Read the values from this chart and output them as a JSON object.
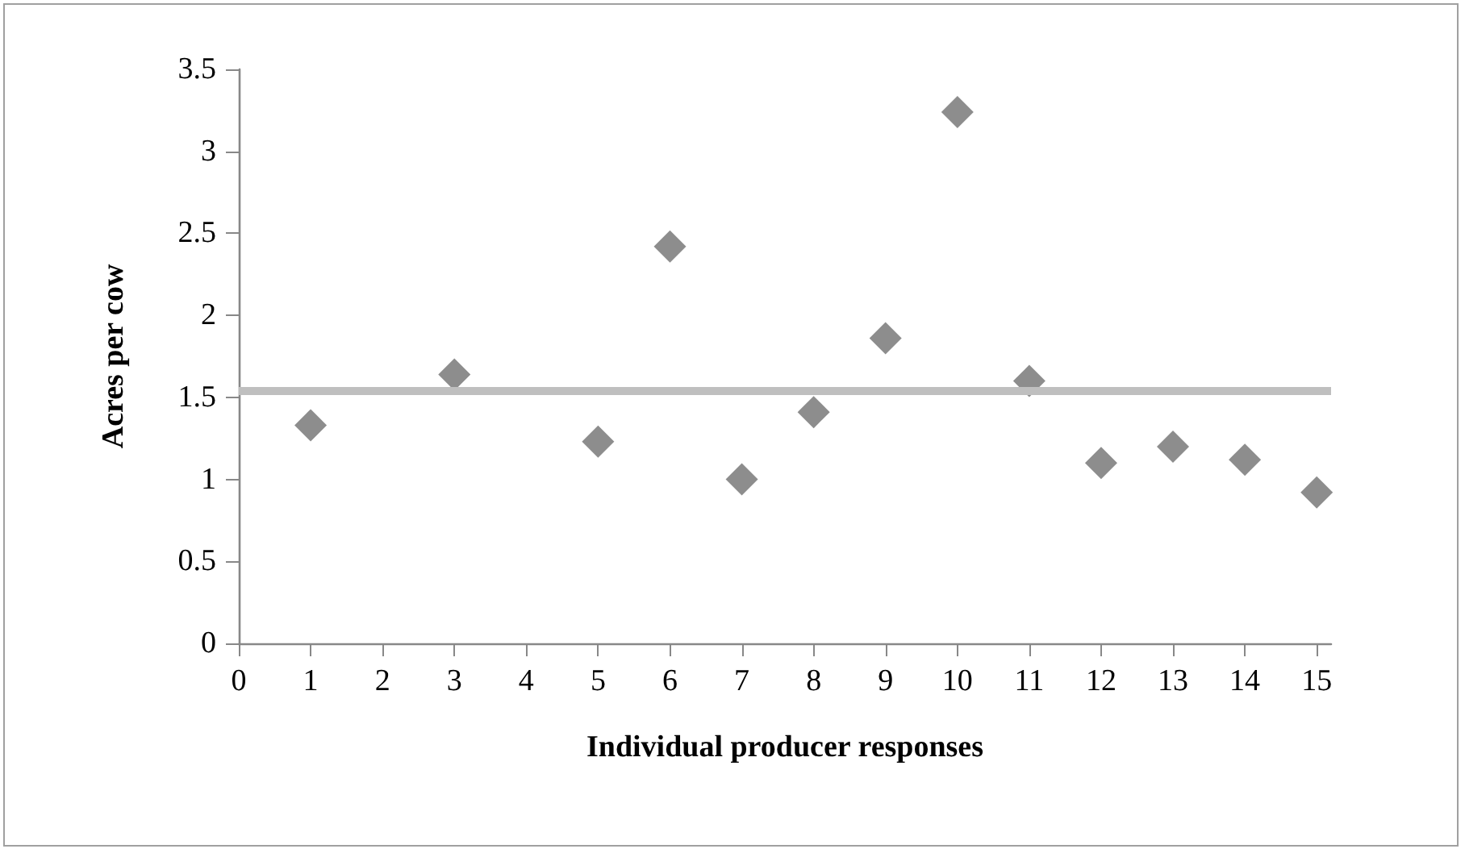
{
  "chart_data": {
    "type": "scatter",
    "xlabel": "Individual producer responses",
    "ylabel": "Acres per cow",
    "x": [
      1,
      3,
      5,
      6,
      7,
      8,
      9,
      10,
      11,
      12,
      13,
      14,
      15
    ],
    "series": [
      {
        "color": "#707070",
        "values": [
          1.33,
          1.64,
          1.23,
          2.42,
          1.0,
          1.41,
          1.86,
          3.24,
          1.6,
          1.1,
          1.2,
          1.12,
          0.92
        ]
      }
    ],
    "xlim": [
      0,
      15.2
    ],
    "xticks": [
      0,
      1,
      2,
      3,
      4,
      5,
      6,
      7,
      8,
      9,
      10,
      11,
      12,
      13,
      14,
      15
    ],
    "ylim": [
      0,
      3.5
    ],
    "yticks": [
      0,
      0.5,
      1,
      1.5,
      2,
      2.5,
      3,
      3.5
    ],
    "ref_lines": [
      {
        "axis": "y",
        "value": 1.54,
        "color": "#bfbfbf",
        "line_style": "solid"
      }
    ],
    "marker": "diamond",
    "grid": false
  }
}
